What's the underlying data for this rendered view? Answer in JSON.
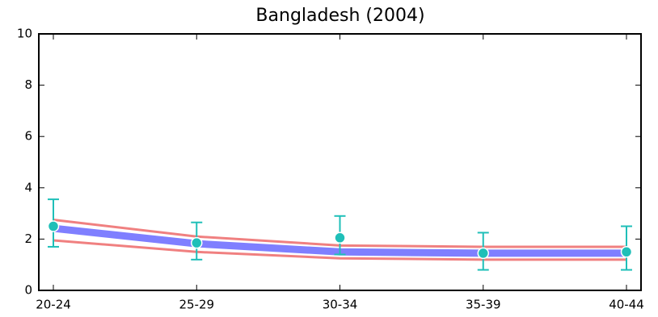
{
  "chart_data": {
    "type": "line",
    "title": "Bangladesh (2004)",
    "categories": [
      "20-24",
      "25-29",
      "30-34",
      "35-39",
      "40-44"
    ],
    "ylim": [
      0,
      10
    ],
    "yticks": [
      0,
      2,
      4,
      6,
      8,
      10
    ],
    "series": [
      {
        "color": "#7f7fff",
        "values": [
          2.42,
          1.82,
          1.5,
          1.45,
          1.45
        ]
      },
      {
        "color": "#f08080",
        "values": [
          2.75,
          2.1,
          1.75,
          1.7,
          1.7
        ]
      },
      {
        "color": "#f08080",
        "values": [
          1.95,
          1.5,
          1.25,
          1.2,
          1.2
        ]
      }
    ],
    "points": {
      "color": "#1fbfb8",
      "values": [
        2.5,
        1.85,
        2.05,
        1.45,
        1.5
      ],
      "lower": [
        1.7,
        1.2,
        1.4,
        0.8,
        0.8
      ],
      "upper": [
        3.55,
        2.65,
        2.9,
        2.25,
        2.5
      ]
    }
  }
}
